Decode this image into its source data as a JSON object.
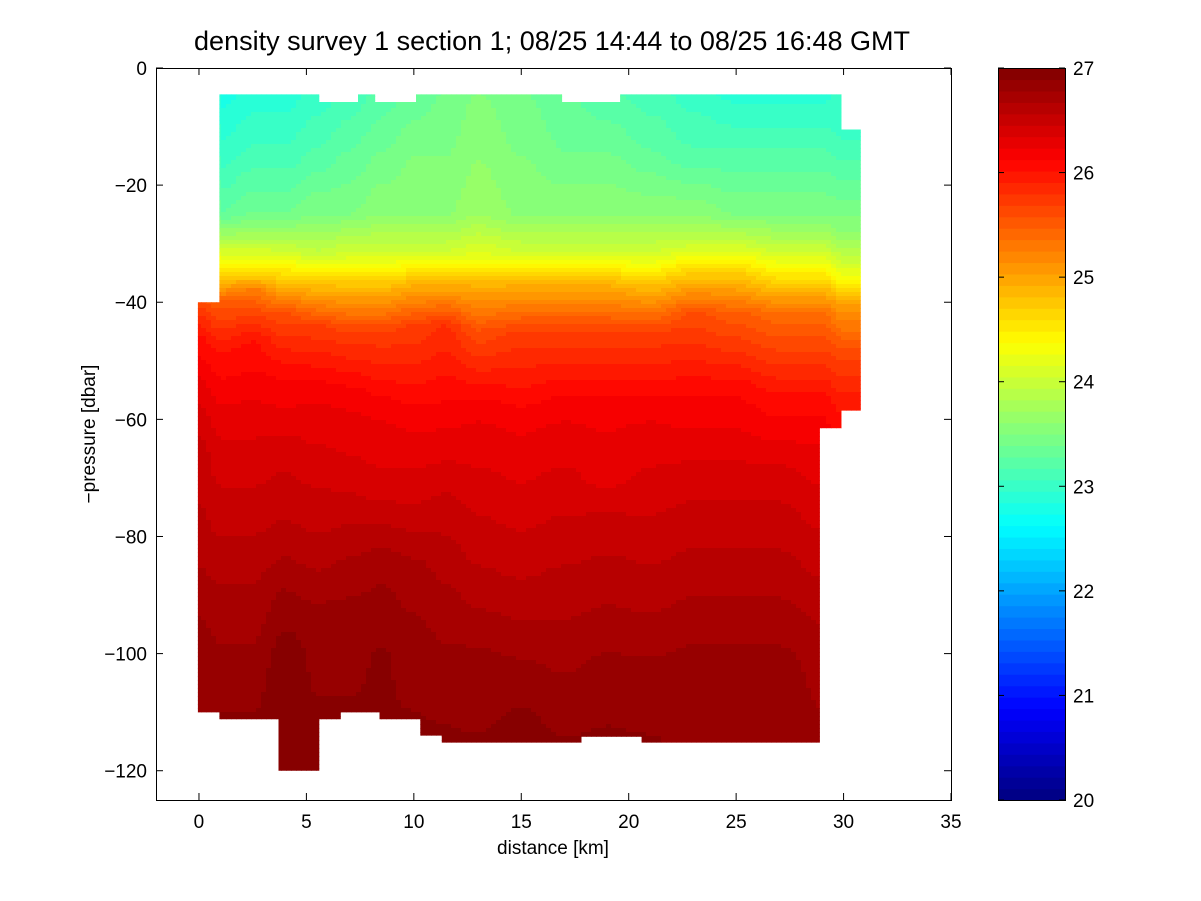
{
  "chart_data": {
    "type": "heatmap",
    "title": "density survey 1 section 1; 08/25 14:44 to 08/25 16:48 GMT",
    "xlabel": "distance [km]",
    "ylabel": "−pressure [dbar]",
    "xlim": [
      -2,
      35
    ],
    "ylim": [
      -125,
      0
    ],
    "xticks": [
      0,
      5,
      10,
      15,
      20,
      25,
      30,
      35
    ],
    "yticks": [
      0,
      -20,
      -40,
      -60,
      -80,
      -100,
      -120
    ],
    "ytick_labels": [
      "0",
      "−20",
      "−40",
      "−60",
      "−80",
      "−100",
      "−120"
    ],
    "colorbar": {
      "colormap": "jet",
      "clim": [
        20,
        27
      ],
      "ticks": [
        20,
        21,
        22,
        23,
        24,
        25,
        26,
        27
      ]
    },
    "grid": false,
    "profiles": [
      {
        "x": 0.0,
        "top": -40,
        "bottom": -110,
        "d": [
          [
            -40,
            25.6
          ],
          [
            -45,
            26.0
          ],
          [
            -55,
            26.3
          ],
          [
            -65,
            26.5
          ],
          [
            -80,
            26.6
          ],
          [
            -95,
            26.8
          ],
          [
            -110,
            26.85
          ]
        ]
      },
      {
        "x": 1.0,
        "top": -5,
        "bottom": -111,
        "d": [
          [
            -5,
            22.8
          ],
          [
            -15,
            23.0
          ],
          [
            -25,
            23.3
          ],
          [
            -30,
            23.9
          ],
          [
            -35,
            24.6
          ],
          [
            -40,
            25.5
          ],
          [
            -48,
            26.0
          ],
          [
            -60,
            26.3
          ],
          [
            -75,
            26.5
          ],
          [
            -90,
            26.7
          ],
          [
            -105,
            26.85
          ],
          [
            -111,
            26.9
          ]
        ]
      },
      {
        "x": 2.5,
        "top": -5,
        "bottom": -111,
        "d": [
          [
            -5,
            22.9
          ],
          [
            -15,
            23.1
          ],
          [
            -25,
            23.4
          ],
          [
            -30,
            23.9
          ],
          [
            -35,
            24.6
          ],
          [
            -38,
            25.3
          ],
          [
            -46,
            26.0
          ],
          [
            -60,
            26.3
          ],
          [
            -75,
            26.5
          ],
          [
            -90,
            26.7
          ],
          [
            -105,
            26.85
          ],
          [
            -111,
            26.9
          ]
        ]
      },
      {
        "x": 4.0,
        "top": -5,
        "bottom": -120,
        "d": [
          [
            -5,
            22.9
          ],
          [
            -15,
            23.1
          ],
          [
            -25,
            23.4
          ],
          [
            -30,
            23.9
          ],
          [
            -36,
            24.7
          ],
          [
            -42,
            25.6
          ],
          [
            -52,
            26.1
          ],
          [
            -65,
            26.4
          ],
          [
            -80,
            26.6
          ],
          [
            -90,
            26.8
          ],
          [
            -100,
            26.95
          ],
          [
            -120,
            27.0
          ]
        ]
      },
      {
        "x": 5.5,
        "top": -5,
        "bottom": -120,
        "d": [
          [
            -5,
            23.0
          ],
          [
            -15,
            23.2
          ],
          [
            -25,
            23.5
          ],
          [
            -32,
            24.0
          ],
          [
            -37,
            24.8
          ],
          [
            -44,
            25.7
          ],
          [
            -55,
            26.2
          ],
          [
            -68,
            26.4
          ],
          [
            -82,
            26.6
          ],
          [
            -95,
            26.85
          ],
          [
            -110,
            26.9
          ],
          [
            -120,
            26.95
          ]
        ]
      },
      {
        "x": 7.0,
        "top": -5,
        "bottom": -110,
        "d": [
          [
            -5,
            23.1
          ],
          [
            -15,
            23.3
          ],
          [
            -25,
            23.5
          ],
          [
            -32,
            24.1
          ],
          [
            -38,
            24.9
          ],
          [
            -45,
            25.7
          ],
          [
            -56,
            26.2
          ],
          [
            -70,
            26.4
          ],
          [
            -85,
            26.7
          ],
          [
            -95,
            26.85
          ],
          [
            -110,
            26.9
          ]
        ]
      },
      {
        "x": 8.5,
        "top": -4,
        "bottom": -111,
        "d": [
          [
            -4,
            23.2
          ],
          [
            -15,
            23.4
          ],
          [
            -25,
            23.6
          ],
          [
            -32,
            24.1
          ],
          [
            -38,
            24.9
          ],
          [
            -45,
            25.7
          ],
          [
            -58,
            26.2
          ],
          [
            -72,
            26.4
          ],
          [
            -85,
            26.75
          ],
          [
            -100,
            26.9
          ],
          [
            -111,
            26.9
          ]
        ]
      },
      {
        "x": 10.0,
        "top": -4,
        "bottom": -112,
        "d": [
          [
            -4,
            23.3
          ],
          [
            -15,
            23.5
          ],
          [
            -25,
            23.6
          ],
          [
            -32,
            24.1
          ],
          [
            -37,
            24.9
          ],
          [
            -44,
            25.7
          ],
          [
            -60,
            26.2
          ],
          [
            -72,
            26.4
          ],
          [
            -85,
            26.7
          ],
          [
            -100,
            26.85
          ],
          [
            -112,
            26.9
          ]
        ]
      },
      {
        "x": 11.5,
        "top": -4,
        "bottom": -114,
        "d": [
          [
            -4,
            23.4
          ],
          [
            -15,
            23.5
          ],
          [
            -25,
            23.6
          ],
          [
            -32,
            24.1
          ],
          [
            -37,
            24.9
          ],
          [
            -44,
            25.8
          ],
          [
            -60,
            26.2
          ],
          [
            -75,
            26.5
          ],
          [
            -90,
            26.7
          ],
          [
            -105,
            26.85
          ],
          [
            -114,
            26.9
          ]
        ]
      },
      {
        "x": 13.0,
        "top": -4,
        "bottom": -115,
        "d": [
          [
            -4,
            23.5
          ],
          [
            -15,
            23.6
          ],
          [
            -25,
            23.7
          ],
          [
            -32,
            24.2
          ],
          [
            -37,
            24.9
          ],
          [
            -45,
            25.6
          ],
          [
            -58,
            26.2
          ],
          [
            -72,
            26.4
          ],
          [
            -88,
            26.6
          ],
          [
            -100,
            26.8
          ],
          [
            -115,
            26.9
          ]
        ]
      },
      {
        "x": 15.0,
        "top": -4,
        "bottom": -115,
        "d": [
          [
            -4,
            23.4
          ],
          [
            -15,
            23.5
          ],
          [
            -25,
            23.6
          ],
          [
            -32,
            24.1
          ],
          [
            -37,
            24.9
          ],
          [
            -45,
            25.7
          ],
          [
            -60,
            26.2
          ],
          [
            -75,
            26.4
          ],
          [
            -90,
            26.6
          ],
          [
            -105,
            26.85
          ],
          [
            -115,
            26.95
          ]
        ]
      },
      {
        "x": 17.0,
        "top": -5,
        "bottom": -115,
        "d": [
          [
            -5,
            23.3
          ],
          [
            -15,
            23.4
          ],
          [
            -25,
            23.6
          ],
          [
            -32,
            24.1
          ],
          [
            -37,
            24.9
          ],
          [
            -45,
            25.7
          ],
          [
            -58,
            26.2
          ],
          [
            -72,
            26.4
          ],
          [
            -88,
            26.6
          ],
          [
            -105,
            26.8
          ],
          [
            -115,
            26.9
          ]
        ]
      },
      {
        "x": 19.0,
        "top": -5,
        "bottom": -114,
        "d": [
          [
            -5,
            23.2
          ],
          [
            -15,
            23.4
          ],
          [
            -25,
            23.6
          ],
          [
            -32,
            24.1
          ],
          [
            -37,
            24.9
          ],
          [
            -45,
            25.7
          ],
          [
            -58,
            26.2
          ],
          [
            -70,
            26.3
          ],
          [
            -78,
            26.5
          ],
          [
            -90,
            26.65
          ],
          [
            -105,
            26.85
          ],
          [
            -114,
            26.9
          ]
        ]
      },
      {
        "x": 21.0,
        "top": -4,
        "bottom": -115,
        "d": [
          [
            -4,
            23.1
          ],
          [
            -15,
            23.3
          ],
          [
            -25,
            23.6
          ],
          [
            -32,
            24.1
          ],
          [
            -37,
            24.8
          ],
          [
            -45,
            25.7
          ],
          [
            -58,
            26.2
          ],
          [
            -72,
            26.4
          ],
          [
            -88,
            26.6
          ],
          [
            -102,
            26.8
          ],
          [
            -115,
            26.9
          ]
        ]
      },
      {
        "x": 23.0,
        "top": -4,
        "bottom": -115,
        "d": [
          [
            -4,
            23.0
          ],
          [
            -15,
            23.2
          ],
          [
            -25,
            23.6
          ],
          [
            -30,
            24.0
          ],
          [
            -35,
            24.7
          ],
          [
            -42,
            25.6
          ],
          [
            -55,
            26.1
          ],
          [
            -70,
            26.4
          ],
          [
            -85,
            26.6
          ],
          [
            -100,
            26.8
          ],
          [
            -115,
            26.85
          ]
        ]
      },
      {
        "x": 25.0,
        "top": -4,
        "bottom": -115,
        "d": [
          [
            -4,
            22.9
          ],
          [
            -15,
            23.2
          ],
          [
            -25,
            23.5
          ],
          [
            -30,
            24.0
          ],
          [
            -35,
            24.7
          ],
          [
            -42,
            25.5
          ],
          [
            -55,
            26.1
          ],
          [
            -70,
            26.4
          ],
          [
            -85,
            26.6
          ],
          [
            -100,
            26.8
          ],
          [
            -115,
            26.85
          ]
        ]
      },
      {
        "x": 27.0,
        "top": -4,
        "bottom": -115,
        "d": [
          [
            -4,
            22.9
          ],
          [
            -15,
            23.2
          ],
          [
            -25,
            23.5
          ],
          [
            -30,
            23.9
          ],
          [
            -36,
            24.6
          ],
          [
            -42,
            25.4
          ],
          [
            -55,
            26.0
          ],
          [
            -70,
            26.4
          ],
          [
            -85,
            26.6
          ],
          [
            -100,
            26.8
          ],
          [
            -115,
            26.85
          ]
        ]
      },
      {
        "x": 29.0,
        "top": -4,
        "bottom": -115,
        "d": [
          [
            -4,
            22.9
          ],
          [
            -15,
            23.2
          ],
          [
            -25,
            23.5
          ],
          [
            -30,
            23.9
          ],
          [
            -36,
            24.6
          ],
          [
            -42,
            25.4
          ],
          [
            -55,
            26.0
          ],
          [
            -62,
            26.2
          ],
          [
            -75,
            26.4
          ],
          [
            -90,
            26.6
          ],
          [
            -100,
            26.75
          ],
          [
            -115,
            26.8
          ]
        ]
      },
      {
        "x": 30.0,
        "top": -10,
        "bottom": -58,
        "d": [
          [
            -10,
            23.0
          ],
          [
            -20,
            23.3
          ],
          [
            -28,
            23.6
          ],
          [
            -35,
            24.2
          ],
          [
            -40,
            25.0
          ],
          [
            -48,
            25.6
          ],
          [
            -58,
            26.0
          ]
        ]
      },
      {
        "x": 30.8,
        "top": -10,
        "bottom": -58,
        "d": [
          [
            -10,
            23.0
          ],
          [
            -20,
            23.3
          ],
          [
            -28,
            23.6
          ],
          [
            -35,
            24.2
          ],
          [
            -40,
            25.0
          ],
          [
            -48,
            25.6
          ],
          [
            -58,
            26.0
          ]
        ]
      }
    ],
    "section_outline": [
      [
        -0.05,
        -110
      ],
      [
        -0.05,
        -40
      ],
      [
        0.95,
        -40
      ],
      [
        0.95,
        -4.5
      ],
      [
        5.6,
        -4.5
      ],
      [
        5.6,
        -5.8
      ],
      [
        7.4,
        -5.8
      ],
      [
        7.4,
        -4.5
      ],
      [
        8.2,
        -4.5
      ],
      [
        8.2,
        -5.8
      ],
      [
        10.1,
        -5.8
      ],
      [
        10.1,
        -4.5
      ],
      [
        16.9,
        -4.5
      ],
      [
        16.9,
        -5.8
      ],
      [
        19.6,
        -5.8
      ],
      [
        19.6,
        -4.5
      ],
      [
        29.9,
        -4.5
      ],
      [
        29.9,
        -10.5
      ],
      [
        30.8,
        -10.5
      ],
      [
        30.8,
        -58.5
      ],
      [
        29.9,
        -58.5
      ],
      [
        29.9,
        -61.5
      ],
      [
        28.9,
        -61.5
      ],
      [
        28.9,
        -115.2
      ],
      [
        20.6,
        -115.2
      ],
      [
        20.6,
        -114.2
      ],
      [
        17.8,
        -114.2
      ],
      [
        17.8,
        -115.2
      ],
      [
        11.3,
        -115.2
      ],
      [
        11.3,
        -114
      ],
      [
        10.3,
        -114
      ],
      [
        10.3,
        -111.2
      ],
      [
        8.4,
        -111.2
      ],
      [
        8.4,
        -110
      ],
      [
        6.6,
        -110
      ],
      [
        6.6,
        -111.2
      ],
      [
        5.6,
        -111.2
      ],
      [
        5.6,
        -120
      ],
      [
        3.7,
        -120
      ],
      [
        3.7,
        -111.2
      ],
      [
        0.95,
        -111.2
      ],
      [
        0.95,
        -110
      ]
    ]
  }
}
